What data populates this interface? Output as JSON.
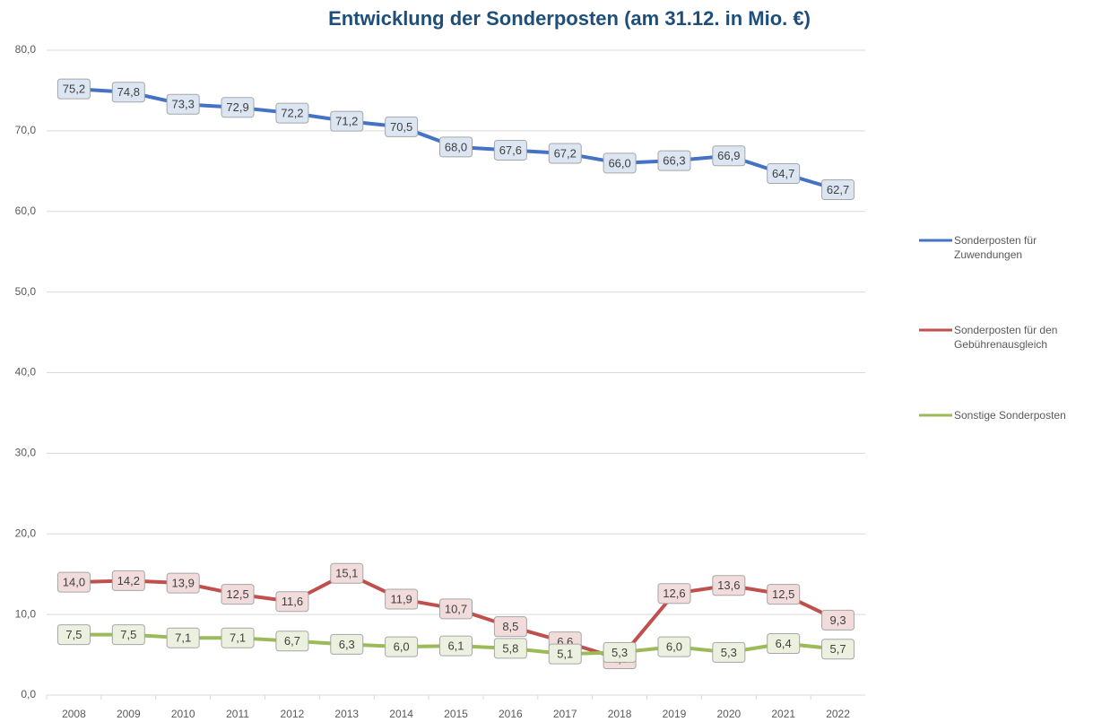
{
  "chart_data": {
    "type": "line",
    "title": "Entwicklung der Sonderposten (am 31.12. in Mio. €)",
    "categories": [
      "2008",
      "2009",
      "2010",
      "2011",
      "2012",
      "2013",
      "2014",
      "2015",
      "2016",
      "2017",
      "2018",
      "2019",
      "2020",
      "2021",
      "2022"
    ],
    "series": [
      {
        "name": "Sonderposten für Zuwendungen",
        "color": "#4472c4",
        "label_fill": "#dce6f2",
        "values": [
          75.2,
          74.8,
          73.3,
          72.9,
          72.2,
          71.2,
          70.5,
          68.0,
          67.6,
          67.2,
          66.0,
          66.3,
          66.9,
          64.7,
          62.7
        ],
        "value_labels": [
          "75,2",
          "74,8",
          "73,3",
          "72,9",
          "72,2",
          "71,2",
          "70,5",
          "68,0",
          "67,6",
          "67,2",
          "66,0",
          "66,3",
          "66,9",
          "64,7",
          "62,7"
        ]
      },
      {
        "name": "Sonderposten für den Gebührenausgleich",
        "color": "#c0504d",
        "label_fill": "#f2dcdb",
        "values": [
          14.0,
          14.2,
          13.9,
          12.5,
          11.6,
          15.1,
          11.9,
          10.7,
          8.5,
          6.6,
          4.5,
          12.6,
          13.6,
          12.5,
          9.3
        ],
        "value_labels": [
          "14,0",
          "14,2",
          "13,9",
          "12,5",
          "11,6",
          "15,1",
          "11,9",
          "10,7",
          "8,5",
          "6,6",
          "4,5",
          "12,6",
          "13,6",
          "12,5",
          "9,3"
        ]
      },
      {
        "name": "Sonstige Sonderposten",
        "color": "#9bbb59",
        "label_fill": "#ebf1de",
        "values": [
          7.5,
          7.5,
          7.1,
          7.1,
          6.7,
          6.3,
          6.0,
          6.1,
          5.8,
          5.1,
          5.3,
          6.0,
          5.3,
          6.4,
          5.7
        ],
        "value_labels": [
          "7,5",
          "7,5",
          "7,1",
          "7,1",
          "6,7",
          "6,3",
          "6,0",
          "6,1",
          "5,8",
          "5,1",
          "5,3",
          "6,0",
          "5,3",
          "6,4",
          "5,7"
        ]
      }
    ],
    "ylim": [
      0,
      80
    ],
    "yticks": [
      {
        "value": 0,
        "label": "0,0"
      },
      {
        "value": 10,
        "label": "10,0"
      },
      {
        "value": 20,
        "label": "20,0"
      },
      {
        "value": 30,
        "label": "30,0"
      },
      {
        "value": 40,
        "label": "40,0"
      },
      {
        "value": 50,
        "label": "50,0"
      },
      {
        "value": 60,
        "label": "60,0"
      },
      {
        "value": 70,
        "label": "70,0"
      },
      {
        "value": 80,
        "label": "80,0"
      }
    ],
    "grid": true,
    "legend": "right"
  }
}
